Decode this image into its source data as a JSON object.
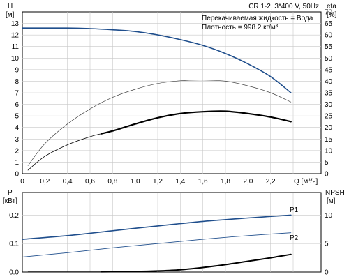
{
  "chart_data": [
    {
      "type": "line",
      "id": "top",
      "title": "CR 1-2, 3*400 V, 50Hz",
      "annotations": [
        "Перекачиваемая жидкость = Вода",
        "Плотность = 998.2 кг/м³"
      ],
      "xlabel": "Q [м³/ч]",
      "xlim": [
        0,
        2.5
      ],
      "xticks": [
        {
          "v": 0,
          "label": "0"
        },
        {
          "v": 0.2,
          "label": "0,2"
        },
        {
          "v": 0.4,
          "label": "0,4"
        },
        {
          "v": 0.6,
          "label": "0,6"
        },
        {
          "v": 0.8,
          "label": "0,8"
        },
        {
          "v": 1.0,
          "label": "1,0"
        },
        {
          "v": 1.2,
          "label": "1,2"
        },
        {
          "v": 1.4,
          "label": "1,4"
        },
        {
          "v": 1.6,
          "label": "1,6"
        },
        {
          "v": 1.8,
          "label": "1,8"
        },
        {
          "v": 2.0,
          "label": "2,0"
        },
        {
          "v": 2.2,
          "label": "2,2"
        }
      ],
      "left_axis": {
        "label_line1": "H",
        "label_line2": "[м]",
        "ylim": [
          0,
          14
        ],
        "ticks": [
          {
            "v": 0,
            "label": "0"
          },
          {
            "v": 1,
            "label": "1"
          },
          {
            "v": 2,
            "label": "2"
          },
          {
            "v": 3,
            "label": "3"
          },
          {
            "v": 4,
            "label": "4"
          },
          {
            "v": 5,
            "label": "5"
          },
          {
            "v": 6,
            "label": "6"
          },
          {
            "v": 7,
            "label": "7"
          },
          {
            "v": 8,
            "label": "8"
          },
          {
            "v": 9,
            "label": "9"
          },
          {
            "v": 10,
            "label": "10"
          },
          {
            "v": 11,
            "label": "11"
          },
          {
            "v": 12,
            "label": "12"
          },
          {
            "v": 13,
            "label": "13"
          }
        ]
      },
      "right_axis": {
        "label_line1": "eta",
        "label_line2": "[%]",
        "ylim": [
          0,
          70
        ],
        "ticks": [
          {
            "v": 0,
            "label": "0"
          },
          {
            "v": 5,
            "label": "5"
          },
          {
            "v": 10,
            "label": "10"
          },
          {
            "v": 15,
            "label": "15"
          },
          {
            "v": 20,
            "label": "20"
          },
          {
            "v": 25,
            "label": "25"
          },
          {
            "v": 30,
            "label": "30"
          },
          {
            "v": 35,
            "label": "35"
          },
          {
            "v": 40,
            "label": "40"
          },
          {
            "v": 45,
            "label": "45"
          },
          {
            "v": 50,
            "label": "50"
          },
          {
            "v": 55,
            "label": "55"
          },
          {
            "v": 60,
            "label": "60"
          },
          {
            "v": 65,
            "label": "65"
          },
          {
            "v": 70,
            "label": "70"
          }
        ]
      },
      "series": [
        {
          "key": "H",
          "axis": "left",
          "color": "#1f4e8c",
          "width": 1.6,
          "x": [
            0,
            0.2,
            0.4,
            0.6,
            0.8,
            1.0,
            1.2,
            1.4,
            1.6,
            1.8,
            2.0,
            2.2,
            2.38
          ],
          "y": [
            12.6,
            12.6,
            12.6,
            12.55,
            12.45,
            12.3,
            12.0,
            11.6,
            11.1,
            10.4,
            9.5,
            8.4,
            7.0
          ]
        },
        {
          "key": "eta-thin",
          "axis": "right",
          "color": "#444444",
          "width": 0.7,
          "x": [
            0.05,
            0.2,
            0.4,
            0.6,
            0.8,
            1.0,
            1.2,
            1.4,
            1.6,
            1.8,
            2.0,
            2.2,
            2.38
          ],
          "y": [
            3.5,
            13,
            21.5,
            28,
            33,
            36.5,
            39,
            40.2,
            40.5,
            40,
            38,
            35,
            31
          ]
        },
        {
          "key": "eta-bold-start",
          "axis": "right",
          "color": "#000000",
          "width": 0.8,
          "x": [
            0.05,
            0.2,
            0.4,
            0.6,
            0.7
          ],
          "y": [
            1.5,
            7.5,
            12.5,
            16,
            17.3
          ]
        },
        {
          "key": "eta-bold",
          "axis": "right",
          "color": "#000000",
          "width": 2.2,
          "x": [
            0.7,
            0.8,
            1.0,
            1.2,
            1.4,
            1.6,
            1.8,
            2.0,
            2.2,
            2.38
          ],
          "y": [
            17.3,
            18.5,
            21.5,
            24.2,
            26,
            26.8,
            27,
            26,
            24.5,
            22.5
          ]
        }
      ]
    },
    {
      "type": "line",
      "id": "bottom",
      "xlim": [
        0,
        2.5
      ],
      "left_axis": {
        "label_line1": "P",
        "label_line2": "[кВт]",
        "ylim": [
          0,
          0.25
        ],
        "ticks": [
          {
            "v": 0,
            "label": "0.0"
          },
          {
            "v": 0.1,
            "label": "0.1"
          },
          {
            "v": 0.2,
            "label": "0.2"
          }
        ]
      },
      "right_axis": {
        "label_line1": "NPSH",
        "label_line2": "[м]",
        "ylim": [
          0,
          12.5
        ],
        "ticks": [
          {
            "v": 0,
            "label": "0"
          },
          {
            "v": 5,
            "label": "5"
          },
          {
            "v": 10,
            "label": "10"
          }
        ]
      },
      "series": [
        {
          "key": "P1",
          "name": "P1",
          "axis": "left",
          "color": "#1f4e8c",
          "width": 1.6,
          "x": [
            0,
            0.4,
            0.8,
            1.2,
            1.6,
            2.0,
            2.38
          ],
          "y": [
            0.115,
            0.128,
            0.145,
            0.162,
            0.178,
            0.19,
            0.2
          ],
          "thin_until": 0.7
        },
        {
          "key": "P2",
          "name": "P2",
          "axis": "left",
          "color": "#1f4e8c",
          "width": 0.9,
          "x": [
            0,
            0.4,
            0.8,
            1.2,
            1.6,
            2.0,
            2.38
          ],
          "y": [
            0.053,
            0.068,
            0.085,
            0.1,
            0.115,
            0.128,
            0.138
          ]
        },
        {
          "key": "NPSH-thin",
          "axis": "right",
          "color": "#000000",
          "width": 0.7,
          "x": [
            0.05,
            0.7
          ],
          "y": [
            0.05,
            0.05
          ]
        },
        {
          "key": "NPSH",
          "axis": "right",
          "color": "#000000",
          "width": 2.0,
          "x": [
            0.7,
            1.0,
            1.2,
            1.4,
            1.6,
            1.8,
            2.0,
            2.2,
            2.38
          ],
          "y": [
            0.05,
            0.1,
            0.2,
            0.4,
            0.8,
            1.3,
            1.9,
            2.5,
            3.1
          ]
        }
      ]
    }
  ]
}
